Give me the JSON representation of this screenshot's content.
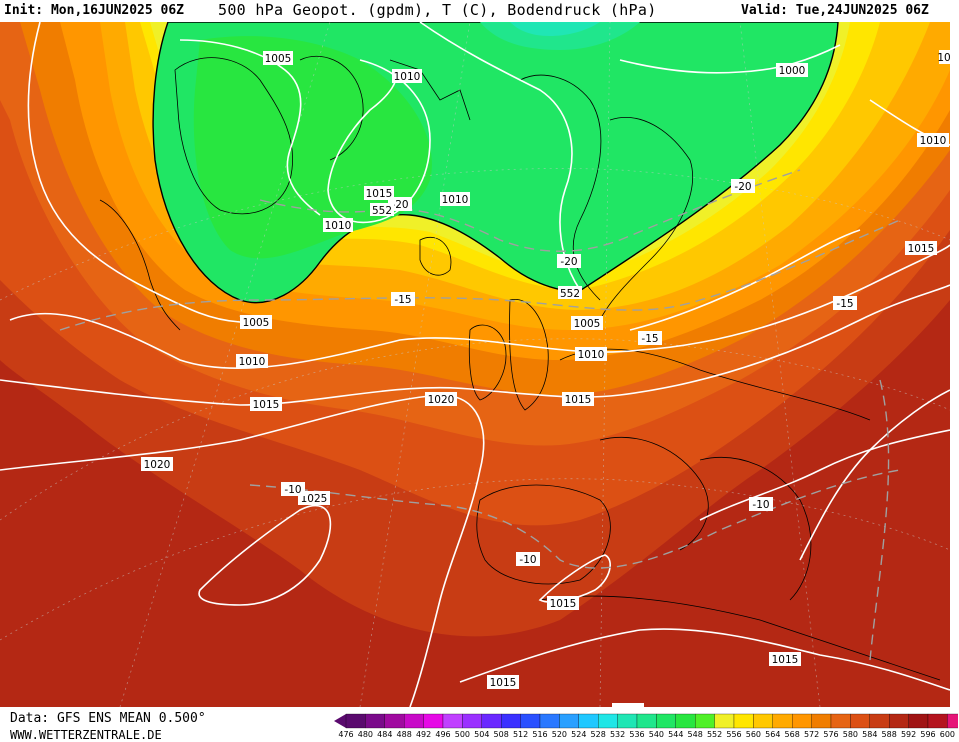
{
  "header": {
    "init": "Init: Mon,16JUN2025 06Z",
    "title": "500 hPa Geopot. (gpdm), T (C), Bodendruck (hPa)",
    "valid": "Valid: Tue,24JUN2025 06Z"
  },
  "footer": {
    "data_source": "Data: GFS ENS MEAN 0.500°",
    "website": "WWW.WETTERZENTRALE.DE"
  },
  "legend": {
    "ticks": [
      "476",
      "480",
      "484",
      "488",
      "492",
      "496",
      "500",
      "504",
      "508",
      "512",
      "516",
      "520",
      "524",
      "528",
      "532",
      "536",
      "540",
      "544",
      "548",
      "552",
      "556",
      "560",
      "564",
      "568",
      "572",
      "576",
      "580",
      "584",
      "588",
      "592",
      "596",
      "600"
    ],
    "colors": [
      "#5a0a6e",
      "#7a0a8a",
      "#a00aa0",
      "#c80ac8",
      "#e60ae6",
      "#c040ff",
      "#9a30ff",
      "#6a28ff",
      "#3a30ff",
      "#2a50ff",
      "#2a78ff",
      "#2aa0ff",
      "#20c8ff",
      "#20e6e6",
      "#20e6b4",
      "#20e68c",
      "#20e664",
      "#28e640",
      "#50f028",
      "#f0f028",
      "#ffe600",
      "#ffc800",
      "#ffaa00",
      "#ff9600",
      "#f07d00",
      "#e66414",
      "#dc5014",
      "#c83c14",
      "#b42814",
      "#a01414",
      "#b4141e",
      "#e61478"
    ]
  },
  "pressure_labels": [
    "1005",
    "1010",
    "1015",
    "1010",
    "1010",
    "1000",
    "1010",
    "1015",
    "1005",
    "1010",
    "1015",
    "1020",
    "1020",
    "1025",
    "1015",
    "1015",
    "1015",
    "1015",
    "1005",
    "1010",
    "1015",
    "10"
  ],
  "temp_labels": [
    "-20",
    "-20",
    "-20",
    "-15",
    "-15",
    "-15",
    "-10",
    "-10",
    "-10"
  ],
  "geopot_labels": [
    "552",
    "552"
  ]
}
